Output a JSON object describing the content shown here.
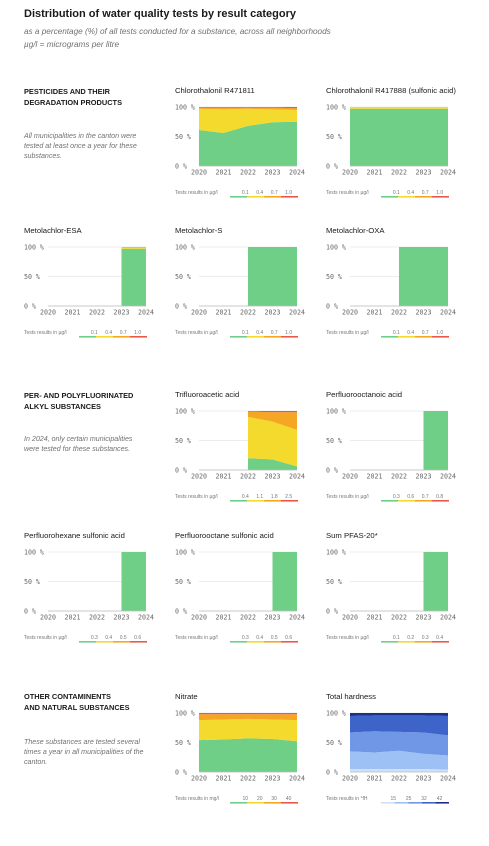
{
  "page": {
    "title": "Distribution of water quality tests by result category",
    "subtitle_1": "as a percentage (%) of all tests conducted for a substance, across all neighborhoods",
    "subtitle_2": "µg/l = micrograms per litre"
  },
  "sections": [
    {
      "title_1": "PESTICIDES AND THEIR",
      "title_2": "DEGRADATION PRODUCTS",
      "desc_1": "All municipalities in the canton were",
      "desc_2": "tested at least once a year for these",
      "desc_3": "substances."
    },
    {
      "title_1": "PER- AND POLYFLUORINATED",
      "title_2": "ALKYL SUBSTANCES",
      "desc_1": "In 2024, only certain municipalities",
      "desc_2": "were tested for these substances.",
      "desc_3": ""
    },
    {
      "title_1": "OTHER CONTAMINENTS",
      "title_2": "AND NATURAL SUBSTANCES",
      "desc_1": "These substances are tested several",
      "desc_2": "times a year in all municipalities of the",
      "desc_3": "canton."
    }
  ],
  "colors": {
    "green": "#6fcf86",
    "yellow": "#f3da2c",
    "orange": "#f5a623",
    "red": "#e8594a",
    "hardness": [
      "#cfe0fb",
      "#9ec1f5",
      "#6f97e6",
      "#3f64c9",
      "#1d2f86"
    ]
  },
  "chart_data": [
    {
      "type": "area",
      "title": "Chlorothalonil R471811",
      "x": [
        "2020",
        "2021",
        "2022",
        "2023",
        "2024"
      ],
      "ylim": [
        0,
        100
      ],
      "yticks": [
        "0 %",
        "50 %",
        "100 %"
      ],
      "legend_label": "Tests results in µg/l",
      "legend_values": [
        "0.1",
        "0.4",
        "0.7",
        "1.0"
      ],
      "series": [
        {
          "color": "green",
          "values": [
            61,
            56,
            68,
            74,
            75
          ]
        },
        {
          "color": "yellow",
          "values": [
            36,
            40,
            29,
            22,
            20
          ]
        },
        {
          "color": "orange",
          "values": [
            2,
            3,
            2,
            3,
            3
          ]
        },
        {
          "color": "red",
          "values": [
            1,
            1,
            1,
            1,
            2
          ]
        }
      ]
    },
    {
      "type": "area",
      "title": "Chlorothalonil R417888 (sulfonic acid)",
      "x": [
        "2020",
        "2021",
        "2022",
        "2023",
        "2024"
      ],
      "ylim": [
        0,
        100
      ],
      "yticks": [
        "0 %",
        "50 %",
        "100 %"
      ],
      "legend_label": "Tests results in µg/l",
      "legend_values": [
        "0.1",
        "0.4",
        "0.7",
        "1.0"
      ],
      "series": [
        {
          "color": "green",
          "values": [
            97,
            97,
            97,
            97,
            97
          ]
        },
        {
          "color": "yellow",
          "values": [
            3,
            3,
            3,
            3,
            3
          ]
        }
      ]
    },
    {
      "type": "area",
      "title": "Metolachlor-ESA",
      "x": [
        "2020",
        "2021",
        "2022",
        "2023",
        "2024"
      ],
      "ylim": [
        0,
        100
      ],
      "yticks": [
        "0 %",
        "50 %",
        "100 %"
      ],
      "legend_label": "Tests results in µg/l",
      "legend_values": [
        "0.1",
        "0.4",
        "0.7",
        "1.0"
      ],
      "series": [
        {
          "color": "green",
          "values": [
            null,
            null,
            null,
            97,
            97
          ]
        },
        {
          "color": "yellow",
          "values": [
            null,
            null,
            null,
            2,
            2
          ]
        },
        {
          "color": "orange",
          "values": [
            null,
            null,
            null,
            1,
            1
          ]
        }
      ]
    },
    {
      "type": "area",
      "title": "Metolachlor-S",
      "x": [
        "2020",
        "2021",
        "2022",
        "2023",
        "2024"
      ],
      "ylim": [
        0,
        100
      ],
      "yticks": [
        "0 %",
        "50 %",
        "100 %"
      ],
      "legend_label": "Tests results in µg/l",
      "legend_values": [
        "0.1",
        "0.4",
        "0.7",
        "1.0"
      ],
      "series": [
        {
          "color": "green",
          "values": [
            null,
            null,
            100,
            100,
            100
          ]
        }
      ]
    },
    {
      "type": "area",
      "title": "Metolachlor-OXA",
      "x": [
        "2020",
        "2021",
        "2022",
        "2023",
        "2024"
      ],
      "ylim": [
        0,
        100
      ],
      "yticks": [
        "0 %",
        "50 %",
        "100 %"
      ],
      "legend_label": "Tests results in µg/l",
      "legend_values": [
        "0.1",
        "0.4",
        "0.7",
        "1.0"
      ],
      "series": [
        {
          "color": "green",
          "values": [
            null,
            null,
            100,
            100,
            100
          ]
        }
      ]
    },
    {
      "type": "area",
      "title": "Trifluoroacetic acid",
      "x": [
        "2020",
        "2021",
        "2022",
        "2023",
        "2024"
      ],
      "ylim": [
        0,
        100
      ],
      "yticks": [
        "0 %",
        "50 %",
        "100 %"
      ],
      "legend_label": "Tests results in µg/l",
      "legend_values": [
        "0.4",
        "1.1",
        "1.8",
        "2.5"
      ],
      "series": [
        {
          "color": "green",
          "values": [
            null,
            null,
            20,
            18,
            6
          ]
        },
        {
          "color": "yellow",
          "values": [
            null,
            null,
            70,
            64,
            62
          ]
        },
        {
          "color": "orange",
          "values": [
            null,
            null,
            9,
            16,
            30
          ]
        },
        {
          "color": "red",
          "values": [
            null,
            null,
            1,
            2,
            2
          ]
        }
      ]
    },
    {
      "type": "area",
      "title": "Perfluorooctanoic acid",
      "x": [
        "2020",
        "2021",
        "2022",
        "2023",
        "2024"
      ],
      "ylim": [
        0,
        100
      ],
      "yticks": [
        "0 %",
        "50 %",
        "100 %"
      ],
      "legend_label": "Tests results in µg/l",
      "legend_values": [
        "0.3",
        "0.6",
        "0.7",
        "0.8"
      ],
      "series": [
        {
          "color": "green",
          "values": [
            null,
            null,
            null,
            100,
            100
          ]
        }
      ]
    },
    {
      "type": "area",
      "title": "Perfluorohexane sulfonic acid",
      "x": [
        "2020",
        "2021",
        "2022",
        "2023",
        "2024"
      ],
      "ylim": [
        0,
        100
      ],
      "yticks": [
        "0 %",
        "50 %",
        "100 %"
      ],
      "legend_label": "Tests results in µg/l",
      "legend_values": [
        "0.3",
        "0.4",
        "0.5",
        "0.6"
      ],
      "series": [
        {
          "color": "green",
          "values": [
            null,
            null,
            null,
            100,
            100
          ]
        }
      ]
    },
    {
      "type": "area",
      "title": "Perfluorooctane sulfonic acid",
      "x": [
        "2020",
        "2021",
        "2022",
        "2023",
        "2024"
      ],
      "ylim": [
        0,
        100
      ],
      "yticks": [
        "0 %",
        "50 %",
        "100 %"
      ],
      "legend_label": "Tests results in µg/l",
      "legend_values": [
        "0.3",
        "0.4",
        "0.5",
        "0.6"
      ],
      "series": [
        {
          "color": "green",
          "values": [
            null,
            null,
            null,
            100,
            100
          ]
        }
      ]
    },
    {
      "type": "area",
      "title": "Sum PFAS-20*",
      "x": [
        "2020",
        "2021",
        "2022",
        "2023",
        "2024"
      ],
      "ylim": [
        0,
        100
      ],
      "yticks": [
        "0 %",
        "50 %",
        "100 %"
      ],
      "legend_label": "Tests results in µg/l",
      "legend_values": [
        "0.1",
        "0.2",
        "0.3",
        "0.4"
      ],
      "series": [
        {
          "color": "green",
          "values": [
            null,
            null,
            null,
            100,
            100
          ]
        }
      ]
    },
    {
      "type": "area",
      "title": "Nitrate",
      "x": [
        "2020",
        "2021",
        "2022",
        "2023",
        "2024"
      ],
      "ylim": [
        0,
        100
      ],
      "yticks": [
        "0 %",
        "50 %",
        "100 %"
      ],
      "legend_label": "Tests results in mg/l",
      "legend_values": [
        "10",
        "20",
        "30",
        "40"
      ],
      "series": [
        {
          "color": "green",
          "values": [
            54,
            55,
            57,
            56,
            52
          ]
        },
        {
          "color": "yellow",
          "values": [
            34,
            34,
            33,
            33,
            36
          ]
        },
        {
          "color": "orange",
          "values": [
            10,
            9,
            8,
            9,
            10
          ]
        },
        {
          "color": "red",
          "values": [
            2,
            2,
            2,
            2,
            2
          ]
        }
      ]
    },
    {
      "type": "area",
      "title": "Total hardness",
      "x": [
        "2020",
        "2021",
        "2022",
        "2023",
        "2024"
      ],
      "ylim": [
        0,
        100
      ],
      "yticks": [
        "0 %",
        "50 %",
        "100 %"
      ],
      "legend_label": "Tests results in °fH",
      "legend_values": [
        "15",
        "25",
        "32",
        "42"
      ],
      "series": [
        {
          "color": "h0",
          "values": [
            5,
            5,
            5,
            5,
            4
          ]
        },
        {
          "color": "h1",
          "values": [
            30,
            28,
            31,
            26,
            24
          ]
        },
        {
          "color": "h2",
          "values": [
            32,
            36,
            32,
            36,
            34
          ]
        },
        {
          "color": "h3",
          "values": [
            28,
            27,
            28,
            29,
            33
          ]
        },
        {
          "color": "h4",
          "values": [
            5,
            4,
            4,
            4,
            5
          ]
        }
      ]
    }
  ]
}
